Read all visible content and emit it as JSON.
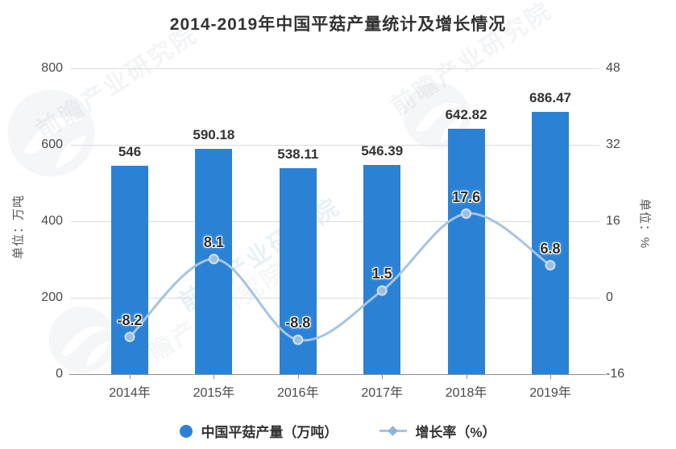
{
  "title": "2014-2019年中国平菇产量统计及增长情况",
  "chart_data": {
    "type": "combo bar+line",
    "categories": [
      "2014年",
      "2015年",
      "2016年",
      "2017年",
      "2018年",
      "2019年"
    ],
    "series": [
      {
        "name": "中国平菇产量（万吨）",
        "chart": "bar",
        "axis": "left",
        "values": [
          546,
          590.18,
          538.11,
          546.39,
          642.82,
          686.47
        ],
        "labels": [
          "546",
          "590.18",
          "538.11",
          "546.39",
          "642.82",
          "686.47"
        ],
        "color": "#2b82d5"
      },
      {
        "name": "增长率（%）",
        "chart": "line",
        "axis": "right",
        "values": [
          -8.2,
          8.1,
          -8.8,
          1.5,
          17.6,
          6.8
        ],
        "labels": [
          "-8.2",
          "8.1",
          "-8.8",
          "1.5",
          "17.6",
          "6.8"
        ],
        "color": "#a6c4e2",
        "marker_color": "#9cc0e2",
        "marker_ring": "#cfe0f0"
      }
    ],
    "left_axis": {
      "label": "单位：万吨",
      "min": 0,
      "max": 800,
      "ticks": [
        0,
        200,
        400,
        600,
        800
      ]
    },
    "right_axis": {
      "label": "单位：%",
      "min": -16,
      "max": 48,
      "ticks": [
        -16,
        0,
        16,
        32,
        48
      ]
    },
    "grid": true,
    "legend_position": "bottom",
    "line_style": "smooth"
  },
  "legend": [
    {
      "label": "中国平菇产量（万吨）",
      "marker": "circle",
      "color": "#2b82d5"
    },
    {
      "label": "增长率（%）",
      "marker": "line-diamond",
      "color": "#a6c4e2",
      "diamond_color": "#8fb6da"
    }
  ],
  "watermark": {
    "text": "前瞻产业研究院"
  }
}
